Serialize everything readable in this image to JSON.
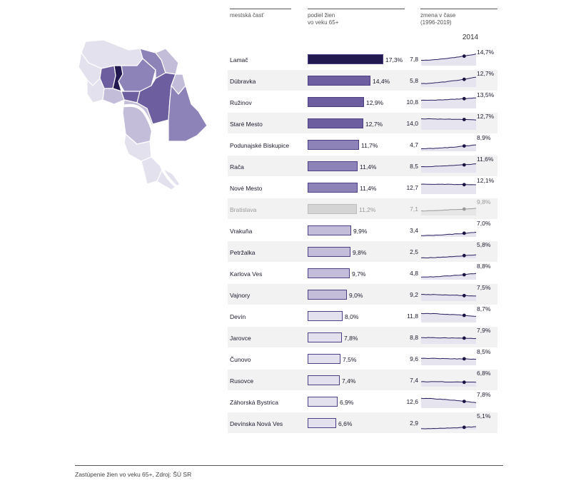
{
  "headers": {
    "district": "mestská časť",
    "share": "podiel žien\nvo veku 65+",
    "change": "zmena v čase\n(1996-2019)",
    "year": "2014"
  },
  "footer": "Zastúpenie žien vo veku 65+, Zdroj: ŠÚ SR",
  "colors": {
    "level1": "#231951",
    "level2": "#6d5f9f",
    "level3": "#8e83b8",
    "level4": "#c3bdda",
    "level5": "#e4e1ee",
    "average": "#d4d4d4",
    "map_outline": "#ffffff"
  },
  "chart_data": {
    "type": "bar",
    "title": "podiel žien vo veku 65+",
    "unit": "%",
    "xlim": [
      0,
      17.3
    ],
    "highlight_year": "2014",
    "period": "1996-2019",
    "rows": [
      {
        "name": "Lamač",
        "value": 17.3,
        "value_label": "17,3%",
        "start": 7.8,
        "start_label": "7,8",
        "end": 14.7,
        "end_label": "14,7%",
        "level": 1
      },
      {
        "name": "Dúbravka",
        "value": 14.4,
        "value_label": "14,4%",
        "start": 5.8,
        "start_label": "5,8",
        "end": 12.7,
        "end_label": "12,7%",
        "level": 2
      },
      {
        "name": "Ružinov",
        "value": 12.9,
        "value_label": "12,9%",
        "start": 10.8,
        "start_label": "10,8",
        "end": 13.5,
        "end_label": "13,5%",
        "level": 2
      },
      {
        "name": "Staré Mesto",
        "value": 12.7,
        "value_label": "12,7%",
        "start": 14.0,
        "start_label": "14,0",
        "end": 12.7,
        "end_label": "12,7%",
        "level": 2
      },
      {
        "name": "Podunajské Biskupice",
        "value": 11.7,
        "value_label": "11,7%",
        "start": 4.7,
        "start_label": "4,7",
        "end": 8.9,
        "end_label": "8,9%",
        "level": 3
      },
      {
        "name": "Rača",
        "value": 11.4,
        "value_label": "11,4%",
        "start": 8.5,
        "start_label": "8,5",
        "end": 11.6,
        "end_label": "11,6%",
        "level": 3
      },
      {
        "name": "Nové Mesto",
        "value": 11.4,
        "value_label": "11,4%",
        "start": 12.7,
        "start_label": "12,7",
        "end": 12.1,
        "end_label": "12,1%",
        "level": 3
      },
      {
        "name": "Bratislava",
        "value": 11.2,
        "value_label": "11,2%",
        "start": 7.1,
        "start_label": "7,1",
        "end": 9.8,
        "end_label": "9,8%",
        "level": 0
      },
      {
        "name": "Vrakuňa",
        "value": 9.9,
        "value_label": "9,9%",
        "start": 3.4,
        "start_label": "3,4",
        "end": 7.0,
        "end_label": "7,0%",
        "level": 4
      },
      {
        "name": "Petržalka",
        "value": 9.8,
        "value_label": "9,8%",
        "start": 2.5,
        "start_label": "2,5",
        "end": 5.8,
        "end_label": "5,8%",
        "level": 4
      },
      {
        "name": "Karlova Ves",
        "value": 9.7,
        "value_label": "9,7%",
        "start": 4.8,
        "start_label": "4,8",
        "end": 8.8,
        "end_label": "8,8%",
        "level": 4
      },
      {
        "name": "Vajnory",
        "value": 9.0,
        "value_label": "9,0%",
        "start": 9.2,
        "start_label": "9,2",
        "end": 7.5,
        "end_label": "7,5%",
        "level": 4
      },
      {
        "name": "Devín",
        "value": 8.0,
        "value_label": "8,0%",
        "start": 11.8,
        "start_label": "11,8",
        "end": 8.7,
        "end_label": "8,7%",
        "level": 5
      },
      {
        "name": "Jarovce",
        "value": 7.8,
        "value_label": "7,8%",
        "start": 8.8,
        "start_label": "8,8",
        "end": 7.9,
        "end_label": "7,9%",
        "level": 5
      },
      {
        "name": "Čunovo",
        "value": 7.5,
        "value_label": "7,5%",
        "start": 9.6,
        "start_label": "9,6",
        "end": 8.5,
        "end_label": "8,5%",
        "level": 5
      },
      {
        "name": "Rusovce",
        "value": 7.4,
        "value_label": "7,4%",
        "start": 7.4,
        "start_label": "7,4",
        "end": 6.8,
        "end_label": "6,8%",
        "level": 5
      },
      {
        "name": "Záhorská Bystrica",
        "value": 6.9,
        "value_label": "6,9%",
        "start": 12.6,
        "start_label": "12,6",
        "end": 7.8,
        "end_label": "7,8%",
        "level": 5
      },
      {
        "name": "Devínska Nová Ves",
        "value": 6.6,
        "value_label": "6,6%",
        "start": 2.9,
        "start_label": "2,9",
        "end": 5.1,
        "end_label": "5,1%",
        "level": 5
      }
    ]
  }
}
